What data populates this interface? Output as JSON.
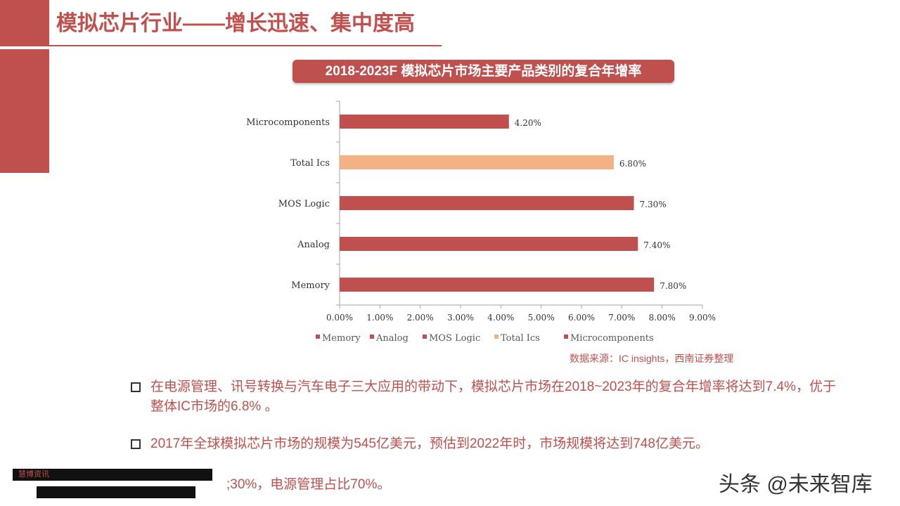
{
  "slide": {
    "title": "模拟芯片行业——增长迅速、集中度高",
    "chart_title": "2018-2023F 模拟芯片市场主要产品类别的复合年增率",
    "source": "数据来源：IC insights，西南证券整理",
    "bullets": [
      "在电源管理、讯号转换与汽车电子三大应用的带动下，模拟芯片市场在2018~2023年的复合年增率将达到7.4%，优于整体IC市场的6.8% 。",
      "2017年全球模拟芯片市场的规模为545亿美元，预估到2022年时，市场规模将达到748亿美元。"
    ],
    "partial_bullet": ";30%，电源管理占比70%。",
    "redaction_label": "慧博资讯",
    "watermark": "头条 @未来智库"
  },
  "colors": {
    "accent": "#c0504d",
    "highlight": "#f4b183"
  },
  "chart_data": {
    "type": "bar",
    "orientation": "horizontal",
    "title": "2018-2023F 模拟芯片市场主要产品类别的复合年增率",
    "categories": [
      "Microcomponents",
      "Total Ics",
      "MOS Logic",
      "Analog",
      "Memory"
    ],
    "values": [
      4.2,
      6.8,
      7.3,
      7.4,
      7.8
    ],
    "value_labels": [
      "4.20%",
      "6.80%",
      "7.30%",
      "7.40%",
      "7.80%"
    ],
    "bar_colors": [
      "#c0504d",
      "#f4b183",
      "#c0504d",
      "#c0504d",
      "#c0504d"
    ],
    "xlim": [
      0,
      9
    ],
    "x_ticks": [
      "0.00%",
      "1.00%",
      "2.00%",
      "3.00%",
      "4.00%",
      "5.00%",
      "6.00%",
      "7.00%",
      "8.00%",
      "9.00%"
    ],
    "grid": false,
    "legend_position": "bottom",
    "legend": [
      "Memory",
      "Analog",
      "MOS Logic",
      "Total Ics",
      "Microcomponents"
    ],
    "legend_colors": [
      "#c0504d",
      "#c0504d",
      "#c0504d",
      "#f4b183",
      "#c0504d"
    ]
  }
}
